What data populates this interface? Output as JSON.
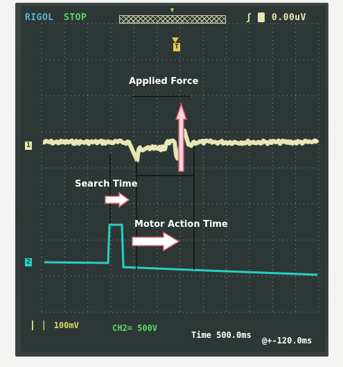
{
  "status_bar": {
    "brand": "RIGOL",
    "run_state": "STOP",
    "trigger_level": "0.00uV"
  },
  "bottom_bar": {
    "ch1_scale": "100mV",
    "ch2_scale": "CH2= 500V",
    "timebase": "Time 500.0ms",
    "trigger_offset": "@+-120.0ms"
  },
  "annotations": {
    "applied_force": "Applied Force",
    "search_time": "Search Time",
    "motor_action_time": "Motor Action Time"
  },
  "channels": {
    "ch1_marker": "1",
    "ch2_marker": "2",
    "trigger_marker": "T"
  },
  "colors": {
    "ch1_trace": "#e8e6b4",
    "ch2_trace": "#27d1c3",
    "status_yellow": "#d8d86a",
    "status_green": "#5fd56a",
    "annotation_arrow": "#e86b7e",
    "grid": "#8a9a93"
  }
}
